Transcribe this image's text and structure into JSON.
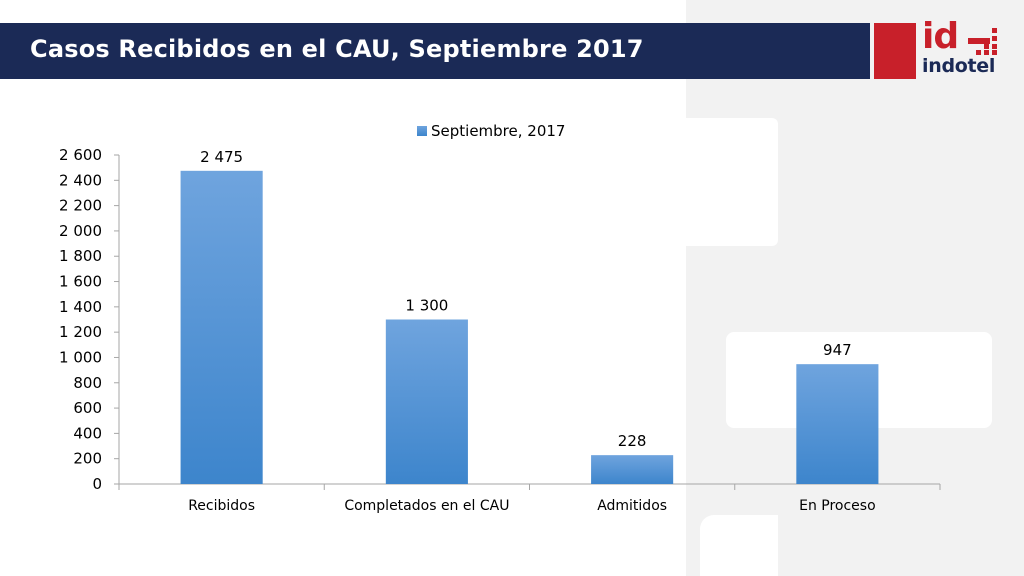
{
  "slide": {
    "title": "Casos Recibidos en el CAU, Septiembre 2017"
  },
  "logo": {
    "mark": "id",
    "wordmark": "indotel",
    "icon": "indotel-logo-icon",
    "colors": {
      "red": "#c8202a",
      "navy": "#1b2a56"
    }
  },
  "colors": {
    "title_bar": "#1b2a56",
    "bar_fill_top": "#6fa4de",
    "bar_fill_bottom": "#3d85cc",
    "axis": "#a6a6a6"
  },
  "chart_data": {
    "type": "bar",
    "categories": [
      "Recibidos",
      "Completados en el CAU",
      "Admitidos",
      "En Proceso"
    ],
    "series": [
      {
        "name": "Septiembre, 2017",
        "values": [
          2475,
          1300,
          228,
          947
        ],
        "value_labels": [
          "2 475",
          "1 300",
          "228",
          "947"
        ]
      }
    ],
    "ylim": [
      0,
      2600
    ],
    "yticks": [
      0,
      200,
      400,
      600,
      800,
      1000,
      1200,
      1400,
      1600,
      1800,
      2000,
      2200,
      2400,
      2600
    ],
    "ytick_labels": [
      "0",
      "200",
      "400",
      "600",
      "800",
      "1 000",
      "1 200",
      "1 400",
      "1 600",
      "1 800",
      "2 000",
      "2 200",
      "2 400",
      "2 600"
    ],
    "grid": false,
    "legend_position": "top",
    "data_labels": true
  }
}
